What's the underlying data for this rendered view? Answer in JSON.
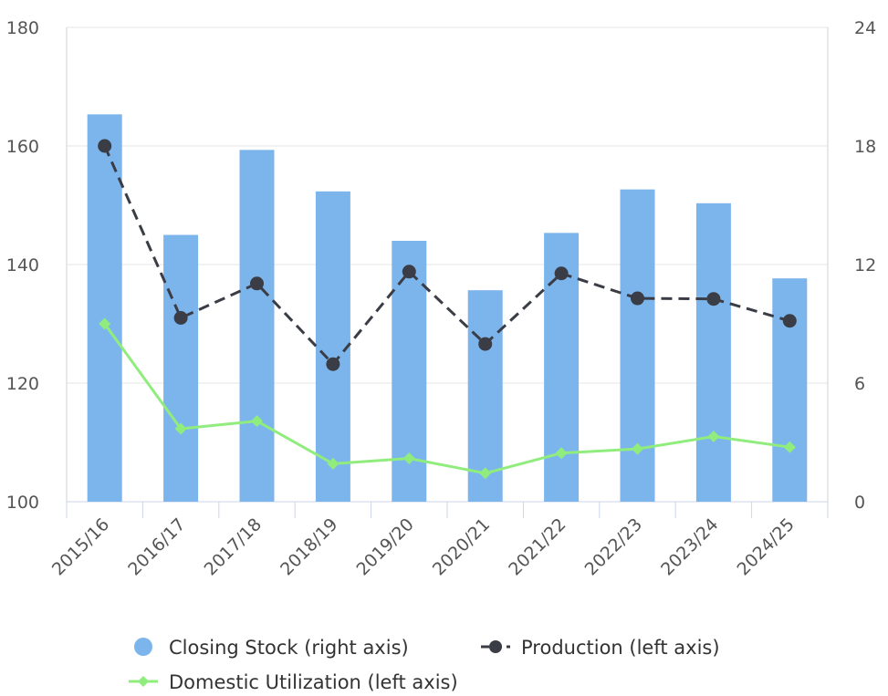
{
  "chart_data": {
    "type": "bar",
    "categories": [
      "2015/16",
      "2016/17",
      "2017/18",
      "2018/19",
      "2019/20",
      "2020/21",
      "2021/22",
      "2022/23",
      "2023/24",
      "2024/25"
    ],
    "series": [
      {
        "name": "Closing Stock (right axis)",
        "type": "bar",
        "axis": "right",
        "color": "#7cb5ec",
        "values": [
          19.6,
          13.5,
          17.8,
          15.7,
          13.2,
          10.7,
          13.6,
          15.8,
          15.1,
          11.3
        ]
      },
      {
        "name": "Production (left axis)",
        "type": "line",
        "axis": "left",
        "color": "#3a3d45",
        "line_style": "dashed",
        "marker": "circle",
        "values": [
          160.0,
          131.0,
          136.8,
          123.2,
          138.8,
          126.6,
          138.5,
          134.3,
          134.2,
          130.5
        ]
      },
      {
        "name": "Domestic Utilization (left axis)",
        "type": "line",
        "axis": "left",
        "color": "#90ed7d",
        "line_style": "solid",
        "marker": "diamond",
        "values": [
          130.0,
          112.3,
          113.6,
          106.4,
          107.3,
          104.8,
          108.2,
          108.9,
          111.0,
          109.2
        ]
      }
    ],
    "left_axis": {
      "ylim": [
        100,
        180
      ],
      "ticks": [
        "100",
        "120",
        "140",
        "160",
        "180"
      ],
      "tick_values": [
        100,
        120,
        140,
        160,
        180
      ]
    },
    "right_axis": {
      "ylim": [
        0,
        24
      ],
      "ticks": [
        "0",
        "6",
        "12",
        "18",
        "24"
      ],
      "tick_values": [
        0,
        6,
        12,
        18,
        24
      ]
    },
    "grid": true,
    "legend": {
      "position": "bottom"
    }
  }
}
